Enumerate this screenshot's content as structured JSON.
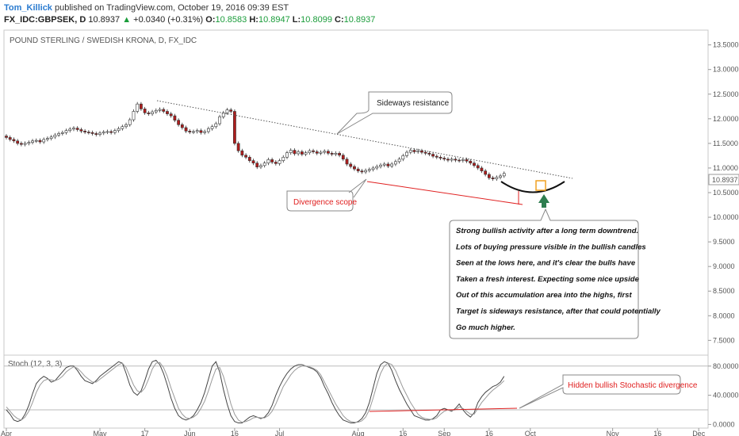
{
  "header": {
    "username": "Tom_Killick",
    "published": "published on TradingView.com, October 19, 2016 09:39 EST",
    "symbol": "FX_IDC:GBPSEK, D",
    "last": "10.8937",
    "arrow": "▲",
    "change": "+0.0340 (+0.31%)",
    "o_label": "O:",
    "o_value": "10.8583",
    "h_label": "H:",
    "h_value": "10.8947",
    "l_label": "L:",
    "l_value": "10.8099",
    "c_label": "C:",
    "c_value": "10.8937"
  },
  "colors": {
    "up_fill": "#ffffff",
    "down_fill": "#b01c1c",
    "candle_border": "#333333",
    "annotation_red": "#e02020",
    "stoch_k": "#444444",
    "stoch_d": "#999999",
    "price_badge_bg": "#ffffff"
  },
  "chart_data": {
    "type": "candlestick",
    "title": "POUND STERLING / SWEDISH KRONA, D, FX_IDC",
    "last_price_label": "10.8937",
    "price_axis": {
      "ylim": [
        7.2,
        13.8
      ],
      "ticks": [
        "13.5000",
        "13.0000",
        "12.5000",
        "12.0000",
        "11.5000",
        "11.0000",
        "10.5000",
        "10.0000",
        "9.5000",
        "9.0000",
        "8.5000",
        "8.0000",
        "7.5000"
      ],
      "tick_values": [
        13.5,
        13.0,
        12.5,
        12.0,
        11.5,
        11.0,
        10.5,
        10.0,
        9.5,
        9.0,
        8.5,
        8.0,
        7.5
      ]
    },
    "x_axis": {
      "labels": [
        "Apr",
        "May",
        "17",
        "Jun",
        "16",
        "Jul",
        "Aug",
        "16",
        "Sep",
        "16",
        "Oct",
        "Nov",
        "16",
        "Dec"
      ],
      "label_index": [
        0,
        25,
        37,
        49,
        61,
        73,
        94,
        106,
        117,
        129,
        140,
        162,
        174,
        185
      ],
      "n_candles": 150
    },
    "close_values": [
      11.62,
      11.58,
      11.55,
      11.5,
      11.48,
      11.5,
      11.52,
      11.55,
      11.56,
      11.53,
      11.58,
      11.6,
      11.63,
      11.67,
      11.7,
      11.72,
      11.76,
      11.79,
      11.81,
      11.78,
      11.75,
      11.73,
      11.72,
      11.7,
      11.68,
      11.71,
      11.73,
      11.74,
      11.72,
      11.76,
      11.8,
      11.84,
      11.88,
      11.98,
      12.15,
      12.3,
      12.2,
      12.12,
      12.1,
      12.14,
      12.17,
      12.19,
      12.15,
      12.1,
      12.06,
      11.97,
      11.88,
      11.82,
      11.75,
      11.73,
      11.74,
      11.76,
      11.72,
      11.74,
      11.8,
      11.84,
      11.9,
      12.04,
      12.12,
      12.18,
      12.15,
      11.5,
      11.35,
      11.26,
      11.22,
      11.15,
      11.1,
      11.02,
      11.05,
      11.1,
      11.17,
      11.12,
      11.09,
      11.15,
      11.22,
      11.31,
      11.36,
      11.29,
      11.33,
      11.28,
      11.31,
      11.35,
      11.33,
      11.3,
      11.32,
      11.34,
      11.3,
      11.28,
      11.3,
      11.26,
      11.18,
      11.08,
      11.03,
      10.98,
      10.94,
      10.92,
      10.95,
      10.97,
      11.0,
      11.03,
      11.06,
      11.08,
      11.04,
      11.08,
      11.13,
      11.18,
      11.25,
      11.32,
      11.36,
      11.33,
      11.35,
      11.32,
      11.3,
      11.28,
      11.24,
      11.22,
      11.2,
      11.18,
      11.16,
      11.18,
      11.16,
      11.15,
      11.17,
      11.14,
      11.1,
      11.05,
      11.0,
      10.94,
      10.87,
      10.8,
      10.78,
      10.81,
      10.84,
      10.89
    ],
    "volatility_note": null,
    "stochastic": {
      "label": "Stoch (12, 3, 3)",
      "ylim": [
        -5,
        95
      ],
      "ticks": [
        "80.0000",
        "40.0000",
        "0.0000"
      ],
      "tick_values": [
        80,
        40,
        0
      ],
      "bands": [
        80,
        20
      ],
      "series": [
        {
          "values": [
            20,
            14,
            6,
            4,
            6,
            14,
            26,
            42,
            56,
            62,
            66,
            63,
            58,
            60,
            66,
            72,
            78,
            80,
            80,
            74,
            66,
            60,
            58,
            56,
            60,
            66,
            70,
            74,
            78,
            82,
            86,
            84,
            70,
            54,
            44,
            40,
            46,
            60,
            76,
            86,
            88,
            82,
            70,
            54,
            36,
            22,
            12,
            8,
            6,
            8,
            12,
            20,
            30,
            44,
            62,
            80,
            86,
            72,
            48,
            28,
            12,
            4,
            2,
            2,
            6,
            10,
            12,
            10,
            8,
            10,
            16,
            26,
            40,
            52,
            62,
            70,
            76,
            80,
            82,
            82,
            80,
            78,
            76,
            72,
            64,
            52,
            42,
            30,
            20,
            12,
            6,
            4,
            2,
            2,
            4,
            8,
            16,
            30,
            50,
            70,
            82,
            86,
            84,
            74,
            60,
            48,
            38,
            28,
            20,
            12,
            10,
            8,
            6,
            6,
            8,
            12,
            20,
            22,
            20,
            18,
            22,
            28,
            20,
            14,
            10,
            16,
            30,
            38,
            44,
            48,
            52,
            54,
            58,
            66
          ]
        },
        {
          "values": [
            24,
            18,
            12,
            8,
            6,
            10,
            18,
            30,
            44,
            54,
            60,
            62,
            61,
            60,
            62,
            66,
            72,
            76,
            79,
            77,
            72,
            66,
            62,
            58,
            58,
            62,
            66,
            70,
            74,
            78,
            82,
            84,
            78,
            66,
            54,
            46,
            44,
            50,
            62,
            76,
            84,
            85,
            78,
            66,
            50,
            36,
            22,
            14,
            9,
            8,
            10,
            14,
            22,
            32,
            46,
            62,
            76,
            78,
            66,
            48,
            28,
            14,
            6,
            3,
            4,
            6,
            9,
            10,
            9,
            9,
            12,
            18,
            28,
            40,
            52,
            60,
            68,
            74,
            78,
            80,
            80,
            79,
            77,
            74,
            68,
            58,
            48,
            38,
            28,
            20,
            12,
            7,
            4,
            3,
            3,
            5,
            10,
            20,
            36,
            54,
            70,
            80,
            84,
            82,
            74,
            62,
            50,
            40,
            30,
            22,
            14,
            10,
            8,
            7,
            7,
            9,
            14,
            18,
            20,
            19,
            20,
            24,
            22,
            18,
            14,
            14,
            22,
            30,
            36,
            42,
            47,
            51,
            55,
            60
          ]
        }
      ]
    },
    "annotations": [
      {
        "text": "Sideways resistance"
      },
      {
        "text": "Divergence scope"
      },
      {
        "text": "Hidden bullish Stochastic divergence"
      },
      {
        "lines": [
          "Strong bullish activity after a long term downtrend.",
          "Lots of buying pressure visible in the bullish candles",
          "Seen at the lows here, and it's clear the bulls have",
          "Taken a fresh interest. Expecting some nice upside",
          "Out of this accumulation area into the highs, first",
          "Target is sideways resistance, after that could potentially",
          "Go much higher."
        ]
      }
    ]
  }
}
